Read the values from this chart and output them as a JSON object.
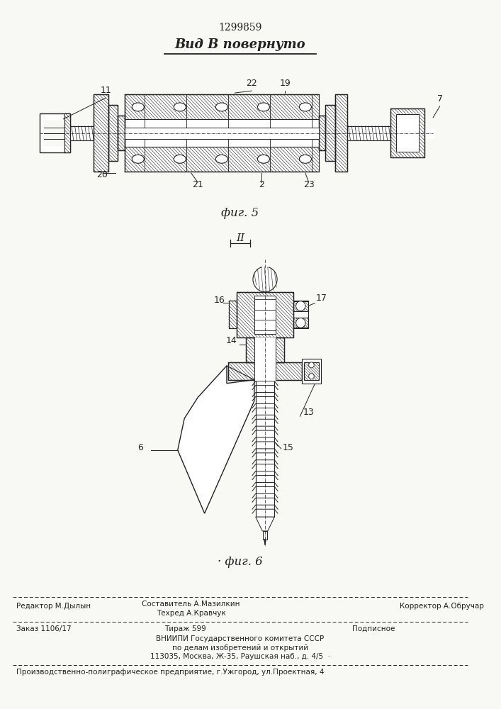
{
  "patent_number": "1299859",
  "title_view": "Вид В повернуто",
  "fig5_label": "фиг. 5",
  "fig6_label": "· фиг. 6",
  "section_label": "II",
  "bg_color": "#f8f8f5",
  "line_color": "#222222",
  "hatch_color": "#444444",
  "footer": {
    "editor": "Редактор М.Дылын",
    "composer": "Составитель А.Мазилкин",
    "techred": "Техред А.Кравчук",
    "corrector": "Корректор А.Обручар",
    "order": "Заказ 1106/17",
    "circulation": "Тираж 599",
    "subscription": "Подписное",
    "vniip1": "ВНИИПИ Государственного комитета СССР",
    "vniip2": "по делам изобретений и открытий",
    "vniip3": "113035, Москва, Ж-35, Раушская наб., д. 4/5  ·",
    "production": "Производственно-полиграфическое предприятие, г.Ужгород, ул.Проектная, 4"
  }
}
